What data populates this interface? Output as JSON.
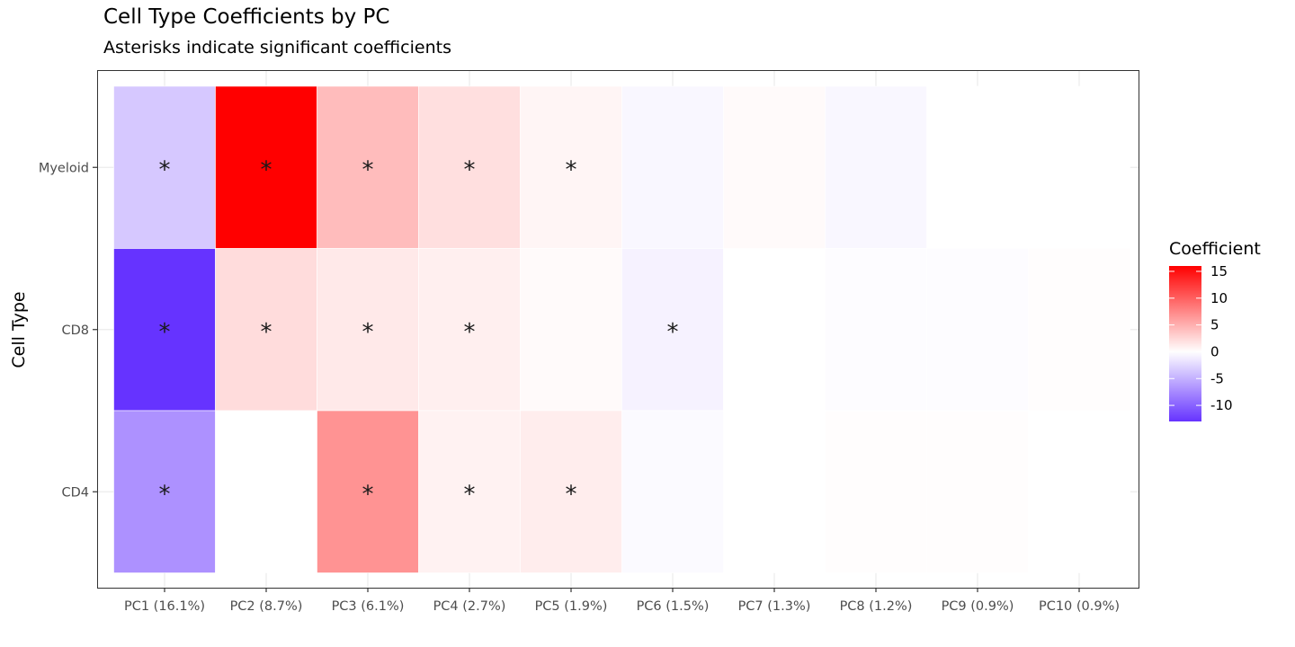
{
  "chart_data": {
    "type": "heatmap",
    "title": "Cell Type Coefficients by PC",
    "subtitle": "Asterisks indicate significant coefficients",
    "xlabel": "",
    "ylabel": "Cell Type",
    "x_categories": [
      "PC1 (16.1%)",
      "PC2 (8.7%)",
      "PC3 (6.1%)",
      "PC4 (2.7%)",
      "PC5 (1.9%)",
      "PC6 (1.5%)",
      "PC7 (1.3%)",
      "PC8 (1.2%)",
      "PC9 (0.9%)",
      "PC10 (0.9%)"
    ],
    "y_categories": [
      "Myeloid",
      "CD8",
      "CD4"
    ],
    "values": [
      [
        -3.5,
        16.0,
        4.2,
        2.0,
        0.6,
        -0.5,
        0.3,
        -0.5,
        0.0,
        0.0
      ],
      [
        -13.0,
        2.2,
        1.4,
        1.0,
        0.3,
        -0.8,
        0.0,
        -0.2,
        -0.2,
        0.1
      ],
      [
        -7.0,
        0.0,
        6.8,
        0.8,
        1.1,
        -0.3,
        0.0,
        0.1,
        0.1,
        0.0
      ]
    ],
    "significant": [
      [
        true,
        true,
        true,
        true,
        true,
        false,
        false,
        false,
        false,
        false
      ],
      [
        true,
        true,
        true,
        true,
        false,
        true,
        false,
        false,
        false,
        false
      ],
      [
        true,
        false,
        true,
        true,
        true,
        false,
        false,
        false,
        false,
        false
      ]
    ],
    "significance_marker": "*",
    "legend": {
      "title": "Coefficient",
      "position": "right",
      "limits": [
        -13.0,
        16.0
      ],
      "breaks": [
        15,
        10,
        5,
        0,
        -5,
        -10
      ],
      "break_labels": [
        "15",
        "10",
        "5",
        "0",
        "-5",
        "-10"
      ],
      "colors": {
        "low": "#6633FF",
        "mid": "#FFFFFF",
        "high": "#FF0000"
      }
    },
    "grid": true,
    "panel_background": "#FFFFFF",
    "panel_border": "#333333",
    "grid_color": "#EBEBEB"
  }
}
